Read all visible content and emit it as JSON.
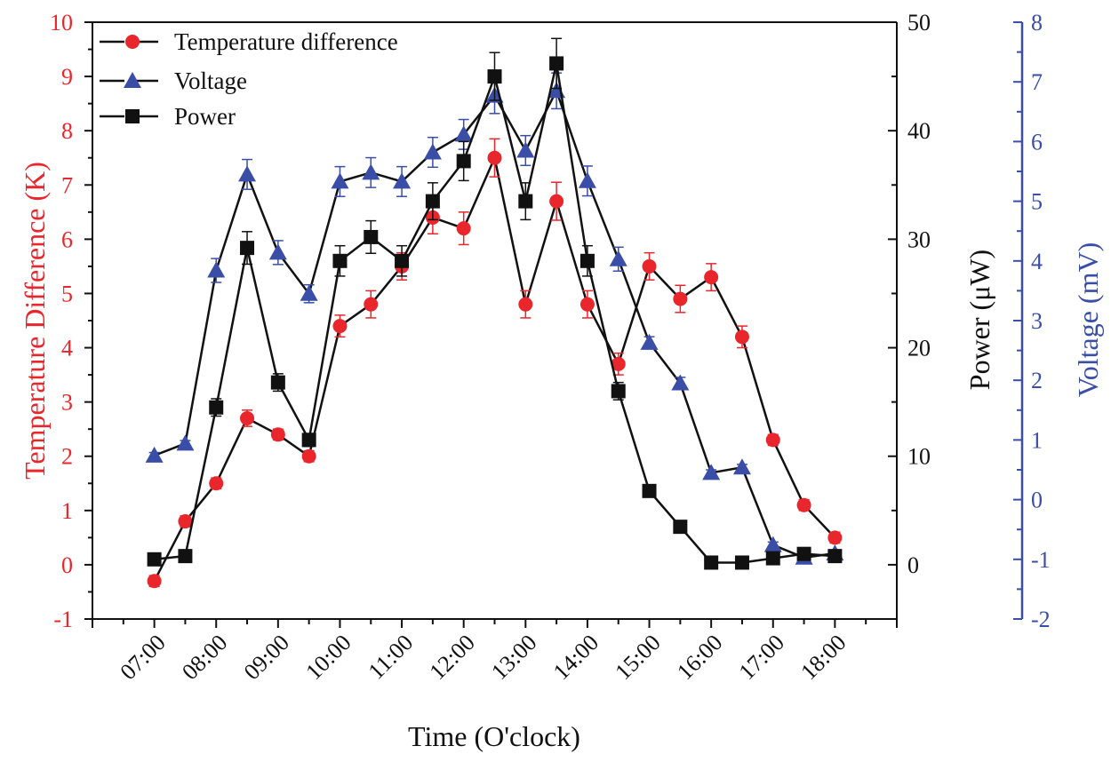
{
  "chart_data": {
    "type": "line",
    "title": "",
    "xlabel": "Time (O'clock)",
    "ylabel_left": "Temperature Difference  (K)",
    "ylabel_right1": "Power (μW)",
    "ylabel_right2": "Voltage (mV)",
    "x_tick_labels": [
      "07:00",
      "08:00",
      "09:00",
      "10:00",
      "11:00",
      "12:00",
      "13:00",
      "14:00",
      "15:00",
      "16:00",
      "17:00",
      "18:00"
    ],
    "x_hours": [
      7,
      7.5,
      8,
      8.5,
      9,
      9.5,
      10,
      10.5,
      11,
      11.5,
      12,
      12.5,
      13,
      13.5,
      14,
      14.5,
      15,
      15.5,
      16,
      16.5,
      17,
      17.5,
      18
    ],
    "ylim_left": [
      -1,
      10
    ],
    "ylim_power": [
      -5,
      50
    ],
    "ylim_voltage": [
      -2,
      8
    ],
    "left_ticks": [
      "-1",
      "0",
      "1",
      "2",
      "3",
      "4",
      "5",
      "6",
      "7",
      "8",
      "9",
      "10"
    ],
    "power_ticks": [
      "0",
      "10",
      "20",
      "30",
      "40",
      "50"
    ],
    "voltage_ticks": [
      "-2",
      "-1",
      "0",
      "1",
      "2",
      "3",
      "4",
      "5",
      "6",
      "7",
      "8"
    ],
    "legend_position": "top-left",
    "series": [
      {
        "name": "Temperature difference",
        "axis": "left",
        "marker": "circle",
        "color": "#e8262b",
        "values": [
          -0.3,
          0.8,
          1.5,
          2.7,
          2.4,
          2.0,
          4.4,
          4.8,
          5.5,
          6.4,
          6.2,
          7.5,
          4.8,
          6.7,
          4.8,
          3.7,
          5.5,
          4.9,
          5.3,
          4.2,
          2.3,
          1.1,
          0.5
        ],
        "errors": [
          0.1,
          0.1,
          0.1,
          0.15,
          0.1,
          0.1,
          0.2,
          0.25,
          0.25,
          0.3,
          0.3,
          0.35,
          0.25,
          0.35,
          0.25,
          0.2,
          0.25,
          0.25,
          0.25,
          0.2,
          0.1,
          0.1,
          0.1
        ]
      },
      {
        "name": "Voltage",
        "axis": "voltage",
        "marker": "triangle",
        "color": "#3a4ea8",
        "values": [
          0.74,
          0.94,
          3.84,
          5.45,
          4.14,
          3.45,
          5.33,
          5.48,
          5.33,
          5.82,
          6.12,
          6.77,
          5.85,
          6.85,
          5.34,
          4.03,
          2.63,
          1.95,
          0.45,
          0.54,
          -0.76,
          -0.97,
          -0.9
        ],
        "errors": [
          0.05,
          0.05,
          0.2,
          0.25,
          0.2,
          0.15,
          0.25,
          0.25,
          0.25,
          0.25,
          0.25,
          0.3,
          0.25,
          0.3,
          0.25,
          0.2,
          0.1,
          0.1,
          0.05,
          0.05,
          0.05,
          0.05,
          0.05
        ]
      },
      {
        "name": "Power",
        "axis": "power",
        "marker": "square",
        "color": "#111111",
        "values": [
          0.5,
          0.8,
          14.5,
          29.2,
          16.8,
          11.5,
          28,
          30.2,
          28,
          33.5,
          37.2,
          45,
          33.5,
          46.2,
          28,
          16,
          6.8,
          3.5,
          0.2,
          0.2,
          0.6,
          1,
          0.8
        ],
        "errors": [
          0.3,
          0.3,
          0.8,
          1.5,
          0.8,
          0.6,
          1.4,
          1.5,
          1.4,
          1.7,
          1.8,
          2.2,
          1.7,
          2.3,
          1.4,
          0.8,
          0.3,
          0.2,
          0.1,
          0.1,
          0.1,
          0.1,
          0.1
        ]
      }
    ]
  }
}
